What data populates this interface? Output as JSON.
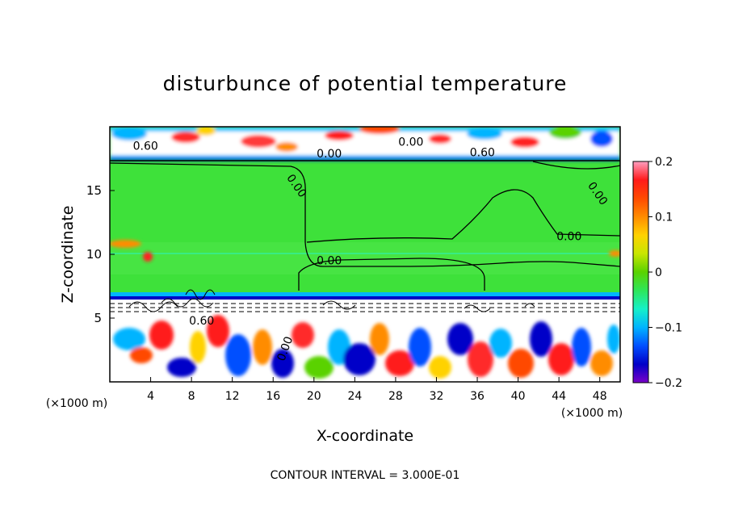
{
  "chart_data": {
    "type": "heatmap",
    "title": "disturbunce of potential temperature",
    "xlabel": "X-coordinate",
    "ylabel": "Z-coordinate",
    "x_unit": "(×1000 m)",
    "x_ticks": [
      4,
      8,
      12,
      16,
      20,
      24,
      28,
      32,
      36,
      40,
      44,
      48
    ],
    "y_ticks": [
      5,
      10,
      15
    ],
    "xlim": [
      0,
      50
    ],
    "ylim": [
      0,
      20
    ],
    "colorbar": {
      "ticks": [
        "0.2",
        "0.1",
        "0",
        "−0.1",
        "−0.2"
      ],
      "range": [
        -0.2,
        0.2
      ],
      "colors": [
        "#ff9ec0",
        "#ff1a1a",
        "#ff4a00",
        "#ff8c00",
        "#ffd200",
        "#c8e600",
        "#5ad200",
        "#2ee65a",
        "#16f0c8",
        "#00b4ff",
        "#0050ff",
        "#0000c8",
        "#7a00c8"
      ]
    },
    "contour_labels": [
      "0.60",
      "0.00",
      "0.00",
      "0.60",
      "0.00",
      "0.00",
      "0.00",
      "0.00",
      "0.60",
      "0.00"
    ],
    "footer": "CONTOUR INTERVAL = 3.000E-01"
  }
}
